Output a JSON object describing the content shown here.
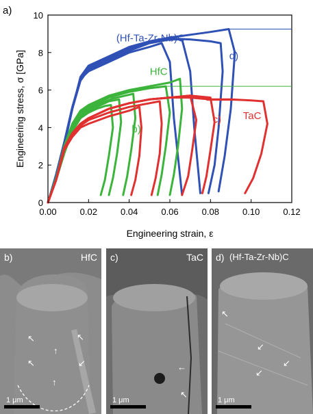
{
  "figure_label": "a)",
  "chart_data": {
    "type": "line",
    "xlabel": "Engineering strain, ε",
    "ylabel": "Engineering stress, σ [GPa]",
    "xlim": [
      0.0,
      0.12
    ],
    "ylim": [
      0,
      10
    ],
    "x_ticks": [
      "0.00",
      "0.02",
      "0.04",
      "0.06",
      "0.08",
      "0.10",
      "0.12"
    ],
    "y_ticks": [
      "0",
      "2",
      "4",
      "6",
      "8",
      "10"
    ],
    "grid": false,
    "annotations": [
      {
        "text": "(Hf-Ta-Zr-Nb)C",
        "x": 0.0505,
        "y": 8.6,
        "color": "#2f50b4"
      },
      {
        "text": "HfC",
        "x": 0.0545,
        "y": 6.8,
        "color": "#3cb43c"
      },
      {
        "text": "TaC",
        "x": 0.1005,
        "y": 4.45,
        "color": "#e03030"
      },
      {
        "text": "b)",
        "x": 0.0435,
        "y": 3.75,
        "color": "#3cb43c"
      },
      {
        "text": "c)",
        "x": 0.0832,
        "y": 4.25,
        "color": "#e03030"
      },
      {
        "text": "d)",
        "x": 0.0915,
        "y": 7.65,
        "color": "#2f50b4"
      }
    ],
    "series": [
      {
        "material": "(Hf-Ta-Zr-Nb)C",
        "color": "#2f50b4",
        "curves": [
          {
            "x": [
              0.0,
              0.004,
              0.008,
              0.012,
              0.016,
              0.02,
              0.03,
              0.04,
              0.05,
              0.056,
              0.06,
              0.062,
              0.066
            ],
            "y": [
              0.0,
              1.5,
              3.2,
              5.1,
              6.6,
              7.0,
              7.5,
              8.0,
              8.3,
              8.5,
              7.5,
              4.5,
              0.4
            ]
          },
          {
            "x": [
              0.0,
              0.004,
              0.008,
              0.012,
              0.016,
              0.02,
              0.03,
              0.04,
              0.05,
              0.06,
              0.066,
              0.07,
              0.072,
              0.075
            ],
            "y": [
              0.0,
              1.4,
              3.1,
              5.0,
              6.5,
              7.1,
              7.6,
              8.1,
              8.5,
              8.7,
              8.7,
              7.0,
              4.0,
              0.5
            ]
          },
          {
            "x": [
              0.0,
              0.004,
              0.008,
              0.012,
              0.016,
              0.02,
              0.03,
              0.04,
              0.05,
              0.06,
              0.07,
              0.08,
              0.085,
              0.086,
              0.084,
              0.082,
              0.079
            ],
            "y": [
              0.0,
              1.4,
              3.1,
              5.0,
              6.6,
              7.2,
              7.7,
              8.2,
              8.55,
              8.75,
              8.7,
              8.6,
              8.5,
              7.0,
              4.0,
              2.0,
              0.5
            ]
          },
          {
            "x": [
              0.0,
              0.004,
              0.008,
              0.012,
              0.016,
              0.02,
              0.03,
              0.04,
              0.05,
              0.06,
              0.07,
              0.08,
              0.089,
              0.092,
              0.09,
              0.087,
              0.084
            ],
            "y": [
              0.0,
              1.3,
              3.0,
              5.0,
              6.7,
              7.3,
              7.8,
              8.3,
              8.6,
              8.8,
              8.95,
              9.1,
              9.25,
              8.0,
              5.0,
              2.5,
              0.6
            ]
          }
        ]
      },
      {
        "material": "HfC",
        "color": "#3cb43c",
        "curves": [
          {
            "x": [
              0.0,
              0.004,
              0.008,
              0.012,
              0.016,
              0.02,
              0.024,
              0.028,
              0.031,
              0.032,
              0.03,
              0.028,
              0.026
            ],
            "y": [
              0.0,
              1.2,
              2.6,
              3.8,
              4.5,
              4.8,
              5.0,
              5.15,
              5.2,
              4.0,
              2.5,
              1.2,
              0.4
            ]
          },
          {
            "x": [
              0.0,
              0.004,
              0.008,
              0.012,
              0.016,
              0.02,
              0.026,
              0.03,
              0.035,
              0.036,
              0.034,
              0.032,
              0.03
            ],
            "y": [
              0.0,
              1.2,
              2.7,
              3.9,
              4.6,
              4.9,
              5.2,
              5.4,
              5.5,
              4.3,
              2.6,
              1.3,
              0.4
            ]
          },
          {
            "x": [
              0.0,
              0.004,
              0.008,
              0.012,
              0.016,
              0.02,
              0.026,
              0.032,
              0.038,
              0.042,
              0.043,
              0.041,
              0.039,
              0.037
            ],
            "y": [
              0.0,
              1.3,
              2.8,
              4.0,
              4.7,
              5.0,
              5.3,
              5.55,
              5.7,
              5.8,
              4.5,
              2.8,
              1.4,
              0.4
            ]
          },
          {
            "x": [
              0.0,
              0.004,
              0.008,
              0.012,
              0.016,
              0.02,
              0.03,
              0.04,
              0.05,
              0.058,
              0.06,
              0.058,
              0.056,
              0.054
            ],
            "y": [
              0.0,
              1.3,
              2.9,
              4.1,
              4.8,
              5.1,
              5.6,
              5.9,
              6.1,
              6.2,
              4.8,
              3.0,
              1.5,
              0.4
            ]
          },
          {
            "x": [
              0.0,
              0.004,
              0.008,
              0.012,
              0.016,
              0.02,
              0.03,
              0.04,
              0.05,
              0.06,
              0.065,
              0.066,
              0.064,
              0.062,
              0.06
            ],
            "y": [
              0.0,
              1.3,
              3.0,
              4.2,
              4.9,
              5.2,
              5.7,
              6.0,
              6.2,
              6.4,
              6.6,
              5.0,
              3.0,
              1.5,
              0.4
            ]
          }
        ]
      },
      {
        "material": "TaC",
        "color": "#e03030",
        "curves": [
          {
            "x": [
              0.0,
              0.004,
              0.008,
              0.012,
              0.016,
              0.02,
              0.03,
              0.04,
              0.045,
              0.046,
              0.045,
              0.043,
              0.041
            ],
            "y": [
              0.0,
              1.2,
              2.8,
              3.5,
              4.0,
              4.2,
              4.6,
              4.9,
              5.1,
              4.0,
              2.5,
              1.2,
              0.4
            ]
          },
          {
            "x": [
              0.0,
              0.004,
              0.008,
              0.012,
              0.016,
              0.02,
              0.03,
              0.04,
              0.05,
              0.055,
              0.056,
              0.055,
              0.053,
              0.051
            ],
            "y": [
              0.0,
              1.2,
              2.8,
              3.6,
              4.1,
              4.4,
              4.8,
              5.1,
              5.3,
              5.4,
              4.2,
              2.6,
              1.3,
              0.4
            ]
          },
          {
            "x": [
              0.0,
              0.004,
              0.008,
              0.012,
              0.016,
              0.02,
              0.03,
              0.04,
              0.05,
              0.06,
              0.07,
              0.073,
              0.071,
              0.069,
              0.066
            ],
            "y": [
              0.0,
              1.2,
              2.9,
              3.7,
              4.2,
              4.5,
              5.0,
              5.3,
              5.5,
              5.6,
              5.7,
              4.4,
              2.8,
              1.4,
              0.4
            ]
          },
          {
            "x": [
              0.0,
              0.004,
              0.008,
              0.012,
              0.016,
              0.02,
              0.03,
              0.04,
              0.05,
              0.06,
              0.07,
              0.08,
              0.082,
              0.08,
              0.078,
              0.076
            ],
            "y": [
              0.0,
              1.2,
              2.9,
              3.7,
              4.2,
              4.5,
              5.0,
              5.3,
              5.5,
              5.6,
              5.7,
              5.6,
              4.3,
              2.8,
              1.4,
              0.5
            ]
          },
          {
            "x": [
              0.0,
              0.004,
              0.008,
              0.012,
              0.016,
              0.02,
              0.03,
              0.04,
              0.05,
              0.06,
              0.07,
              0.08,
              0.09,
              0.1,
              0.106,
              0.108,
              0.105,
              0.101,
              0.097
            ],
            "y": [
              0.0,
              1.2,
              2.9,
              3.7,
              4.2,
              4.5,
              5.0,
              5.3,
              5.5,
              5.6,
              5.6,
              5.5,
              5.5,
              5.45,
              5.4,
              4.2,
              2.6,
              1.3,
              0.5
            ]
          }
        ]
      }
    ],
    "reference_lines": [
      {
        "color": "#2f50b4",
        "y": 9.25,
        "x": [
          0.089,
          0.12
        ]
      },
      {
        "color": "#3cb43c",
        "y": 6.2,
        "x": [
          0.058,
          0.12
        ]
      },
      {
        "color": "#e03030",
        "y": 5.45,
        "x": [
          0.078,
          0.103
        ]
      }
    ]
  },
  "panels": [
    {
      "label": "b)",
      "name": "HfC",
      "scale": "1 μm"
    },
    {
      "label": "c)",
      "name": "TaC",
      "scale": "1 μm"
    },
    {
      "label": "d)",
      "name": "(Hf-Ta-Zr-Nb)C",
      "scale": "1 μm"
    }
  ]
}
